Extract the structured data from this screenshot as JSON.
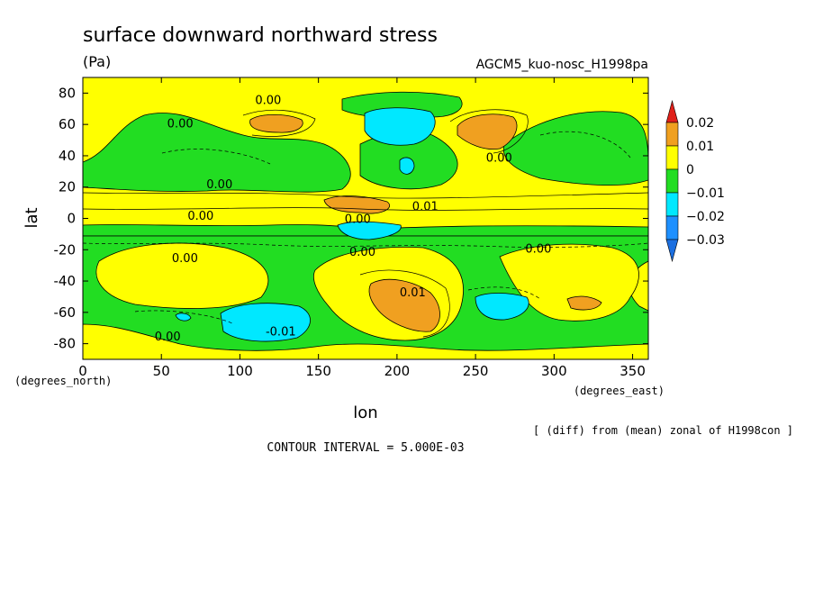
{
  "chart_data": {
    "type": "heatmap",
    "title": "surface downward northward stress",
    "units": "(Pa)",
    "run_label": "AGCM5_kuo-nosc_H1998pa",
    "xlabel": "lon",
    "ylabel": "lat",
    "x_unit_label": "(degrees_east)",
    "y_unit_label": "(degrees_north)",
    "xlim": [
      0,
      360
    ],
    "ylim": [
      -90,
      90
    ],
    "x_ticks": [
      0,
      50,
      100,
      150,
      200,
      250,
      300,
      350
    ],
    "y_ticks": [
      -80,
      -60,
      -40,
      -20,
      0,
      20,
      40,
      60,
      80
    ],
    "colorbar": {
      "levels": [
        "0.02",
        "0.01",
        "0",
        "−0.01",
        "−0.02",
        "−0.03"
      ],
      "colors": [
        "#e0201a",
        "#f0a020",
        "#ffff00",
        "#22dd22",
        "#00e8ff",
        "#1e90ff",
        "#1c6fe0"
      ]
    },
    "contour_labels": [
      {
        "text": "0.00",
        "lon": 118,
        "lat": 76
      },
      {
        "text": "0.00",
        "lon": 62,
        "lat": 61
      },
      {
        "text": "0.00",
        "lon": 87,
        "lat": 22
      },
      {
        "text": "0.00",
        "lon": 75,
        "lat": 2
      },
      {
        "text": "0.01",
        "lon": 218,
        "lat": 8
      },
      {
        "text": "0.00",
        "lon": 175,
        "lat": 0
      },
      {
        "text": "0.00",
        "lon": 265,
        "lat": 39
      },
      {
        "text": "0.00",
        "lon": 65,
        "lat": -25
      },
      {
        "text": "0.00",
        "lon": 178,
        "lat": -21
      },
      {
        "text": "0.01",
        "lon": 210,
        "lat": -47
      },
      {
        "text": "0.00",
        "lon": 290,
        "lat": -19
      },
      {
        "text": "-0.01",
        "lon": 126,
        "lat": -72
      },
      {
        "text": "0.00",
        "lon": 54,
        "lat": -75
      }
    ],
    "notes": {
      "diff": "[ (diff) from (mean) zonal of H1998con ]",
      "interval": "CONTOUR INTERVAL = 5.000E-03"
    }
  }
}
